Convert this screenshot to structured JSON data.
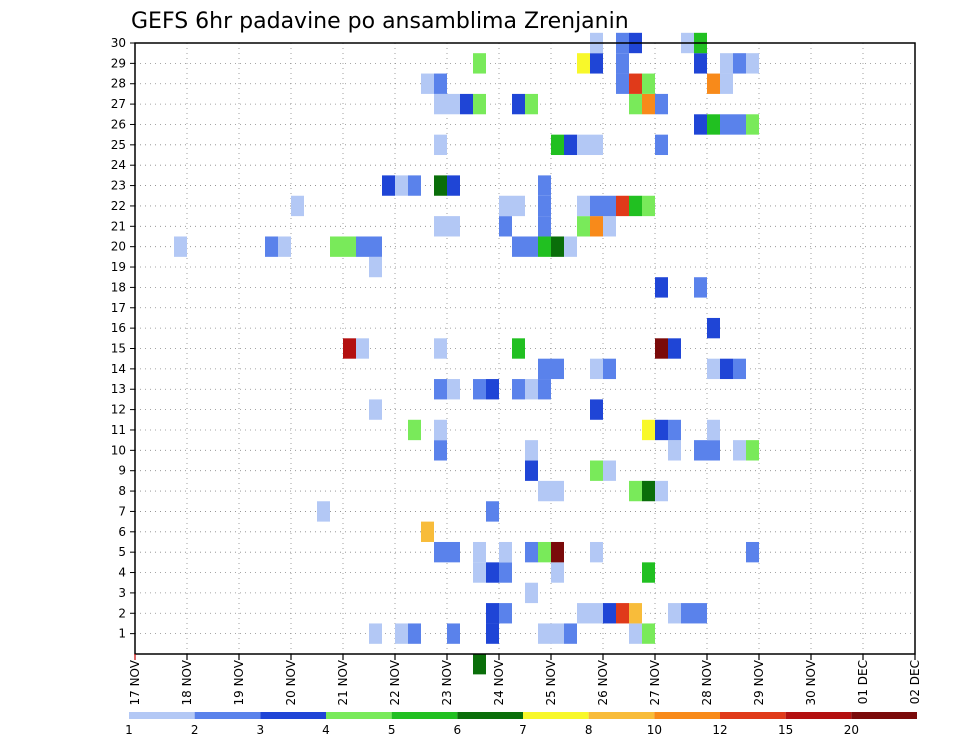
{
  "chart_data": {
    "type": "heatmap",
    "title": "GEFS 6hr padavine po ansamblima Zrenjanin",
    "xlabel": "",
    "ylabel": "",
    "x_ticks": [
      "17 NOV",
      "18 NOV",
      "19 NOV",
      "20 NOV",
      "21 NOV",
      "22 NOV",
      "23 NOV",
      "24 NOV",
      "25 NOV",
      "26 NOV",
      "27 NOV",
      "28 NOV",
      "29 NOV",
      "30 NOV",
      "01 DEC",
      "02 DEC"
    ],
    "y_ticks": [
      "1",
      "2",
      "3",
      "4",
      "5",
      "6",
      "7",
      "8",
      "9",
      "10",
      "11",
      "12",
      "13",
      "14",
      "15",
      "16",
      "17",
      "18",
      "19",
      "20",
      "21",
      "22",
      "23",
      "24",
      "25",
      "26",
      "27",
      "28",
      "29",
      "30"
    ],
    "ylim": [
      0,
      30
    ],
    "grid": true,
    "colorbar": {
      "labels": [
        "1",
        "2",
        "3",
        "4",
        "5",
        "6",
        "7",
        "8",
        "10",
        "12",
        "15",
        "20"
      ],
      "colors": [
        "#b3c8f5",
        "#5a82eb",
        "#1f45d6",
        "#79ea5a",
        "#21c021",
        "#0a6e0a",
        "#f8f82a",
        "#f8bc3a",
        "#f88a1a",
        "#e03a1a",
        "#b31010",
        "#7a0a0a"
      ]
    },
    "cells": [
      [
        21.5,
        1,
        1
      ],
      [
        22,
        1,
        1
      ],
      [
        22.25,
        1,
        2
      ],
      [
        23,
        1,
        2
      ],
      [
        23.5,
        0,
        6
      ],
      [
        23.75,
        1,
        3
      ],
      [
        24.75,
        1,
        1
      ],
      [
        25,
        1,
        1
      ],
      [
        25.25,
        1,
        2
      ],
      [
        26.5,
        1,
        1
      ],
      [
        26.75,
        1,
        4
      ],
      [
        23.75,
        2,
        3
      ],
      [
        24,
        2,
        2
      ],
      [
        25.5,
        2,
        1
      ],
      [
        25.75,
        2,
        1
      ],
      [
        26,
        2,
        3
      ],
      [
        26.25,
        2,
        10
      ],
      [
        26.5,
        2,
        8
      ],
      [
        27.25,
        2,
        1
      ],
      [
        27.5,
        2,
        2
      ],
      [
        27.75,
        2,
        2
      ],
      [
        24.5,
        3,
        1
      ],
      [
        23.5,
        4,
        1
      ],
      [
        23.75,
        4,
        3
      ],
      [
        24,
        4,
        2
      ],
      [
        25,
        4,
        1
      ],
      [
        26.75,
        4,
        5
      ],
      [
        22.75,
        5,
        2
      ],
      [
        23,
        5,
        2
      ],
      [
        23.5,
        5,
        1
      ],
      [
        24,
        5,
        1
      ],
      [
        24.5,
        5,
        2
      ],
      [
        24.75,
        5,
        4
      ],
      [
        25,
        5,
        12
      ],
      [
        25.75,
        5,
        1
      ],
      [
        28.75,
        5,
        2
      ],
      [
        22.5,
        6,
        8
      ],
      [
        20.5,
        7,
        1
      ],
      [
        23.75,
        7,
        2
      ],
      [
        24.75,
        8,
        1
      ],
      [
        25,
        8,
        1
      ],
      [
        26.5,
        8,
        4
      ],
      [
        26.75,
        8,
        6
      ],
      [
        27,
        8,
        1
      ],
      [
        24.5,
        9,
        3
      ],
      [
        25.75,
        9,
        4
      ],
      [
        26,
        9,
        1
      ],
      [
        22.75,
        10,
        2
      ],
      [
        24.5,
        10,
        1
      ],
      [
        27.25,
        10,
        1
      ],
      [
        27.75,
        10,
        2
      ],
      [
        28,
        10,
        2
      ],
      [
        28.5,
        10,
        1
      ],
      [
        28.75,
        10,
        4
      ],
      [
        22.25,
        11,
        4
      ],
      [
        22.75,
        11,
        1
      ],
      [
        26.75,
        11,
        7
      ],
      [
        27,
        11,
        3
      ],
      [
        27.25,
        11,
        2
      ],
      [
        28,
        11,
        1
      ],
      [
        21.5,
        12,
        1
      ],
      [
        25.75,
        12,
        3
      ],
      [
        22.75,
        13,
        2
      ],
      [
        23,
        13,
        1
      ],
      [
        23.5,
        13,
        2
      ],
      [
        23.75,
        13,
        3
      ],
      [
        24.25,
        13,
        2
      ],
      [
        24.5,
        13,
        1
      ],
      [
        24.75,
        13,
        2
      ],
      [
        24.75,
        14,
        2
      ],
      [
        25,
        14,
        2
      ],
      [
        25.75,
        14,
        1
      ],
      [
        26,
        14,
        2
      ],
      [
        28,
        14,
        1
      ],
      [
        28.25,
        14,
        3
      ],
      [
        28.5,
        14,
        2
      ],
      [
        21,
        15,
        11
      ],
      [
        21.25,
        15,
        1
      ],
      [
        22.75,
        15,
        1
      ],
      [
        24.25,
        15,
        5
      ],
      [
        27,
        15,
        12
      ],
      [
        27.25,
        15,
        3
      ],
      [
        28,
        16,
        3
      ],
      [
        27,
        18,
        3
      ],
      [
        27.75,
        18,
        2
      ],
      [
        21.5,
        19,
        1
      ],
      [
        17.75,
        20,
        1
      ],
      [
        19.5,
        20,
        2
      ],
      [
        19.75,
        20,
        1
      ],
      [
        20.75,
        20,
        4
      ],
      [
        21,
        20,
        4
      ],
      [
        21.25,
        20,
        2
      ],
      [
        21.5,
        20,
        2
      ],
      [
        24.25,
        20,
        2
      ],
      [
        24.5,
        20,
        2
      ],
      [
        24.75,
        20,
        5
      ],
      [
        25,
        20,
        6
      ],
      [
        25.25,
        20,
        1
      ],
      [
        22.75,
        21,
        1
      ],
      [
        23,
        21,
        1
      ],
      [
        24,
        21,
        2
      ],
      [
        24.75,
        21,
        2
      ],
      [
        25.5,
        21,
        4
      ],
      [
        25.75,
        21,
        9
      ],
      [
        26,
        21,
        1
      ],
      [
        20,
        22,
        1
      ],
      [
        24,
        22,
        1
      ],
      [
        24.25,
        22,
        1
      ],
      [
        24.75,
        22,
        2
      ],
      [
        25.5,
        22,
        1
      ],
      [
        25.75,
        22,
        2
      ],
      [
        26,
        22,
        2
      ],
      [
        26.25,
        22,
        10
      ],
      [
        26.5,
        22,
        5
      ],
      [
        26.75,
        22,
        4
      ],
      [
        21.75,
        23,
        3
      ],
      [
        22,
        23,
        1
      ],
      [
        22.25,
        23,
        2
      ],
      [
        22.75,
        23,
        6
      ],
      [
        23,
        23,
        3
      ],
      [
        24.75,
        23,
        2
      ],
      [
        22.75,
        25,
        1
      ],
      [
        25,
        25,
        5
      ],
      [
        25.25,
        25,
        3
      ],
      [
        25.5,
        25,
        1
      ],
      [
        25.75,
        25,
        1
      ],
      [
        27,
        25,
        2
      ],
      [
        27.75,
        26,
        3
      ],
      [
        28,
        26,
        5
      ],
      [
        28.25,
        26,
        2
      ],
      [
        28.5,
        26,
        2
      ],
      [
        28.75,
        26,
        4
      ],
      [
        22.75,
        27,
        1
      ],
      [
        23,
        27,
        1
      ],
      [
        23.25,
        27,
        3
      ],
      [
        23.5,
        27,
        4
      ],
      [
        24.25,
        27,
        3
      ],
      [
        24.5,
        27,
        4
      ],
      [
        26.5,
        27,
        4
      ],
      [
        26.75,
        27,
        9
      ],
      [
        27,
        27,
        2
      ],
      [
        22.5,
        28,
        1
      ],
      [
        22.75,
        28,
        2
      ],
      [
        26.25,
        28,
        2
      ],
      [
        26.5,
        28,
        10
      ],
      [
        26.75,
        28,
        4
      ],
      [
        28,
        28,
        9
      ],
      [
        28.25,
        28,
        1
      ],
      [
        23.5,
        29,
        4
      ],
      [
        25.5,
        29,
        7
      ],
      [
        25.75,
        29,
        3
      ],
      [
        26.25,
        29,
        2
      ],
      [
        27.75,
        29,
        3
      ],
      [
        28.25,
        29,
        1
      ],
      [
        28.5,
        29,
        2
      ],
      [
        28.75,
        29,
        1
      ],
      [
        25.75,
        30,
        1
      ],
      [
        26.25,
        30,
        2
      ],
      [
        26.5,
        30,
        3
      ],
      [
        27.5,
        30,
        1
      ],
      [
        27.75,
        30,
        5
      ]
    ]
  }
}
